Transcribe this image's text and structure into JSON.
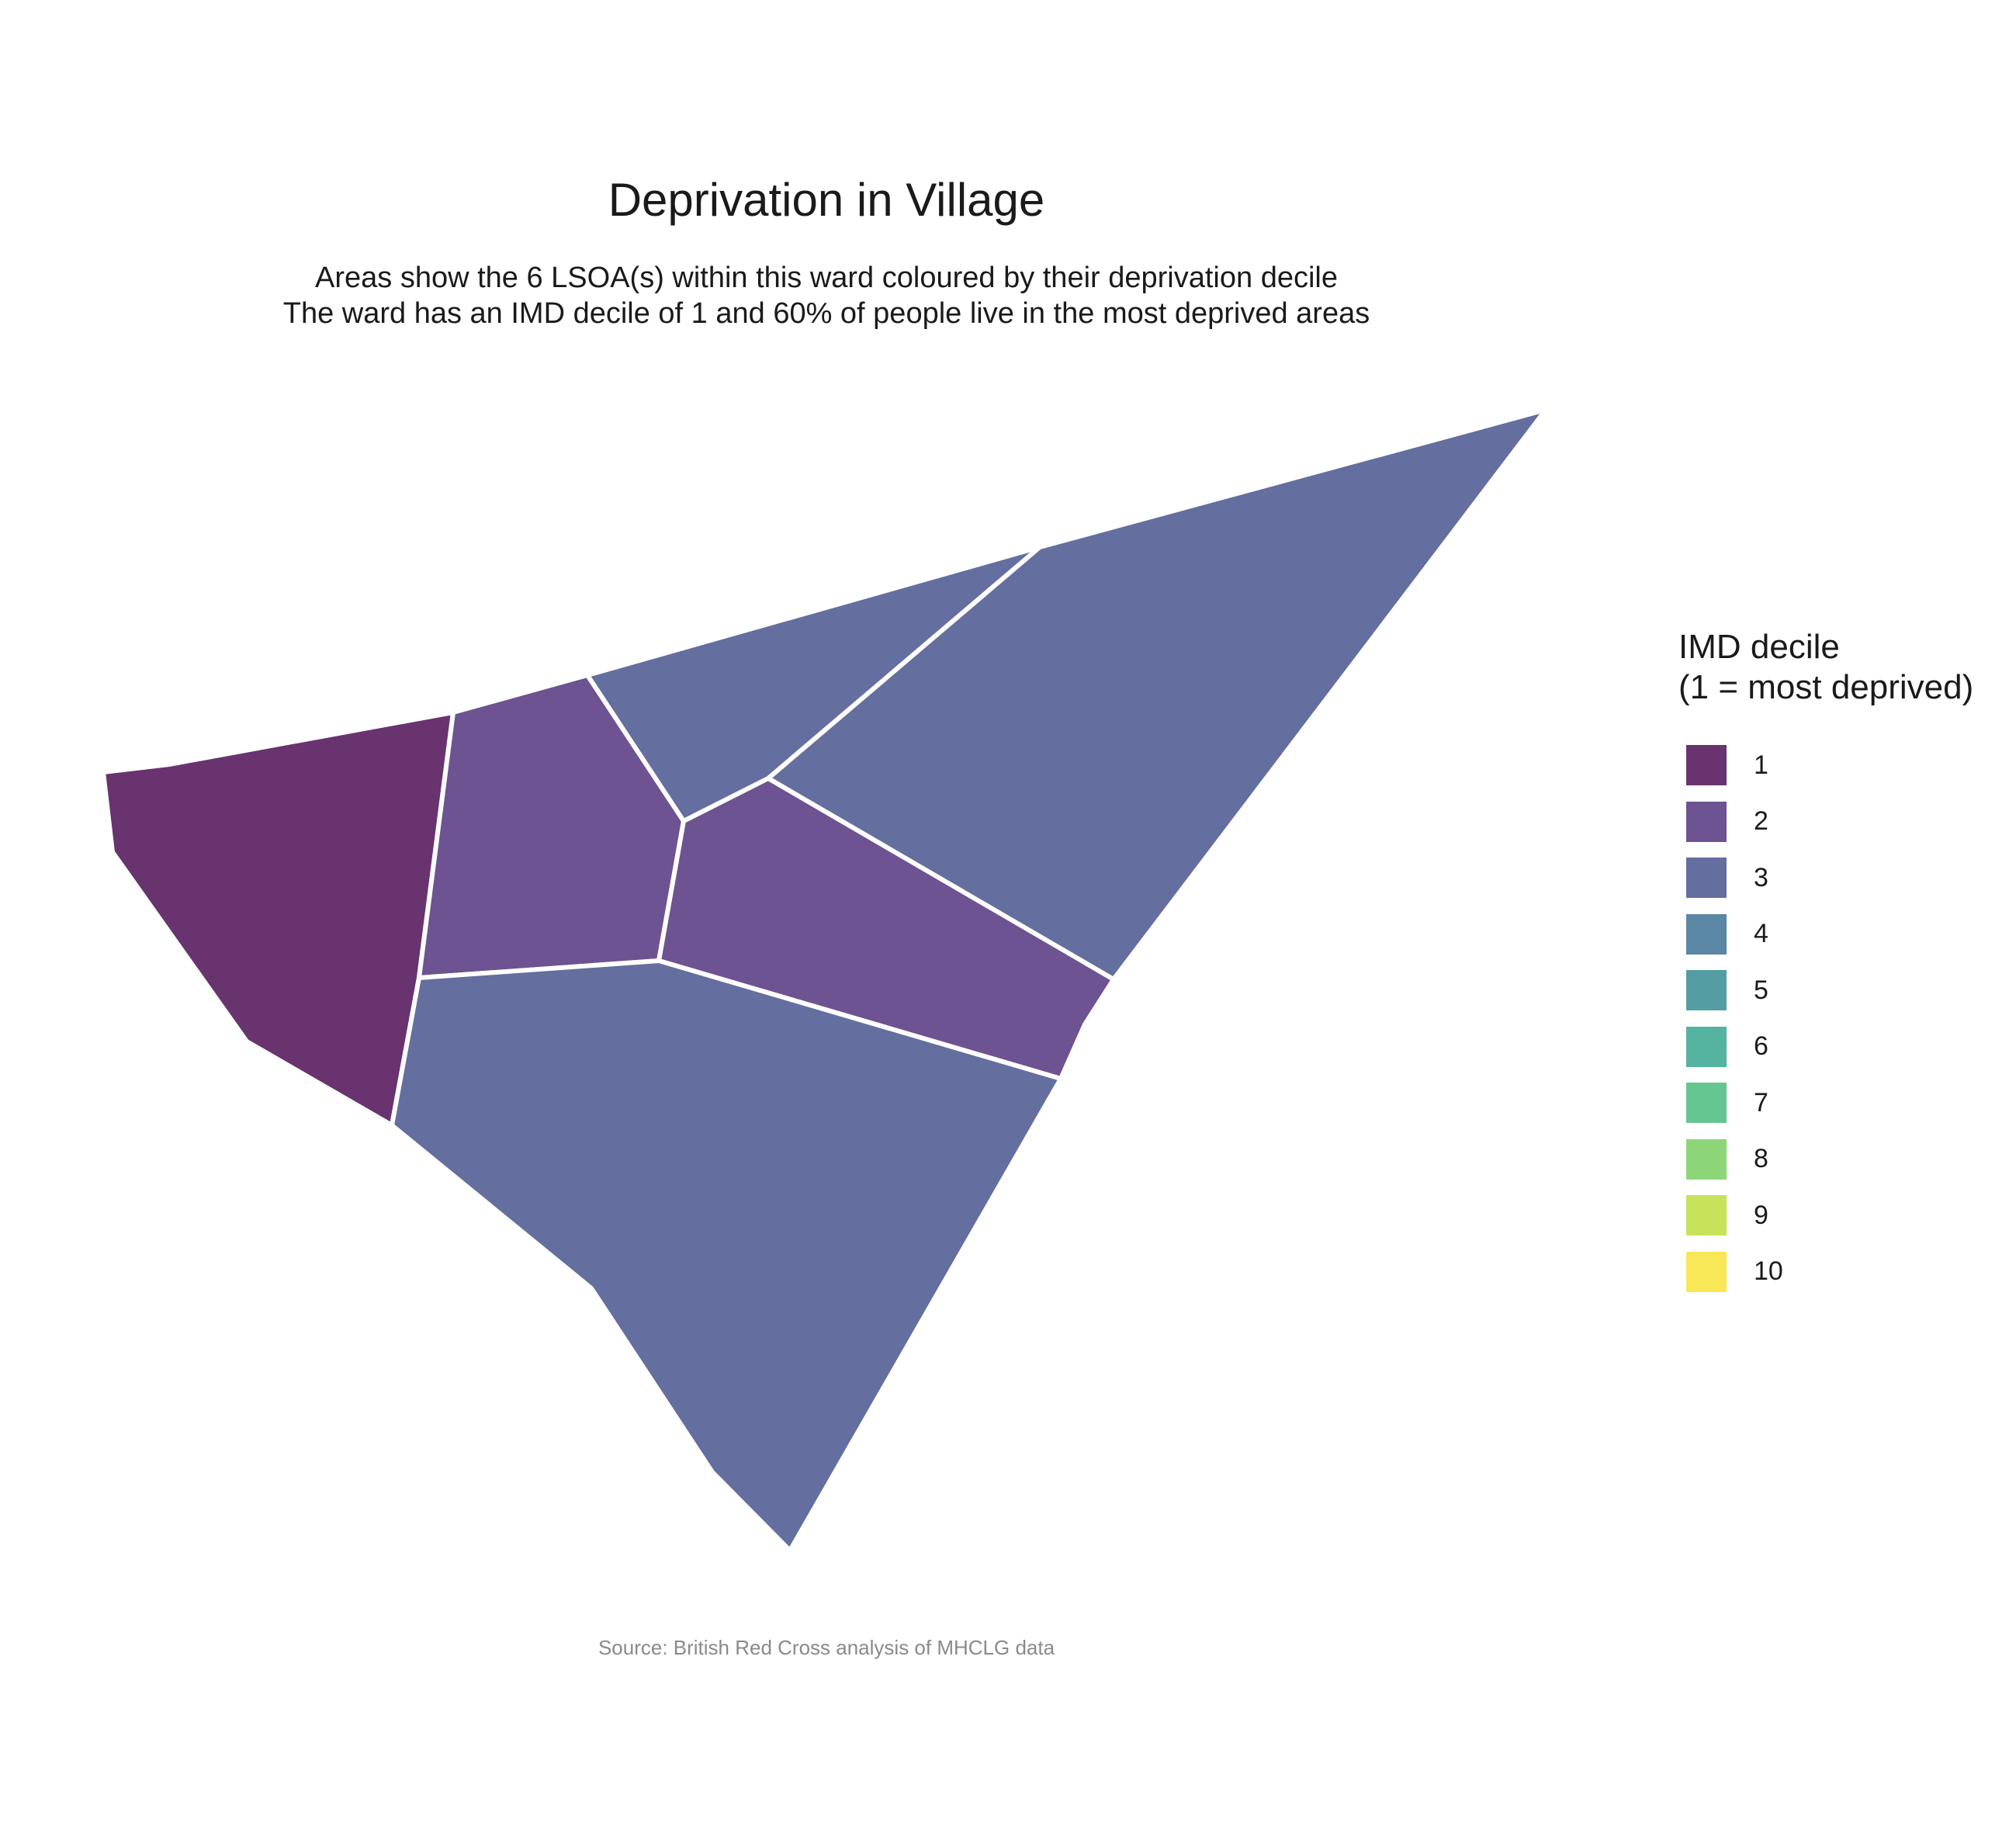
{
  "title": "Deprivation in Village",
  "subtitle": [
    "Areas show the 6 LSOA(s) within this ward coloured by their deprivation decile",
    "The ward has an IMD decile of 1 and 60% of people live in the most deprived areas"
  ],
  "caption": "Source: British Red Cross analysis of MHCLG data",
  "legend": {
    "title_lines": [
      "IMD decile",
      "(1 = most deprived)"
    ],
    "items": [
      {
        "label": "1",
        "color": "#68336f"
      },
      {
        "label": "2",
        "color": "#6d5391"
      },
      {
        "label": "3",
        "color": "#646e9f"
      },
      {
        "label": "4",
        "color": "#5a87a3"
      },
      {
        "label": "5",
        "color": "#549da3"
      },
      {
        "label": "6",
        "color": "#54b4a0"
      },
      {
        "label": "7",
        "color": "#65c691"
      },
      {
        "label": "8",
        "color": "#8cd679"
      },
      {
        "label": "9",
        "color": "#c6e35a"
      },
      {
        "label": "10",
        "color": "#f8e756"
      }
    ]
  },
  "map": {
    "border_color": "#ffffff",
    "areas": [
      {
        "name": "lsoa-west",
        "decile": 1
      },
      {
        "name": "lsoa-centre-west",
        "decile": 2
      },
      {
        "name": "lsoa-north",
        "decile": 3
      },
      {
        "name": "lsoa-northeast",
        "decile": 3
      },
      {
        "name": "lsoa-centre-east",
        "decile": 2
      },
      {
        "name": "lsoa-south",
        "decile": 3
      }
    ]
  }
}
